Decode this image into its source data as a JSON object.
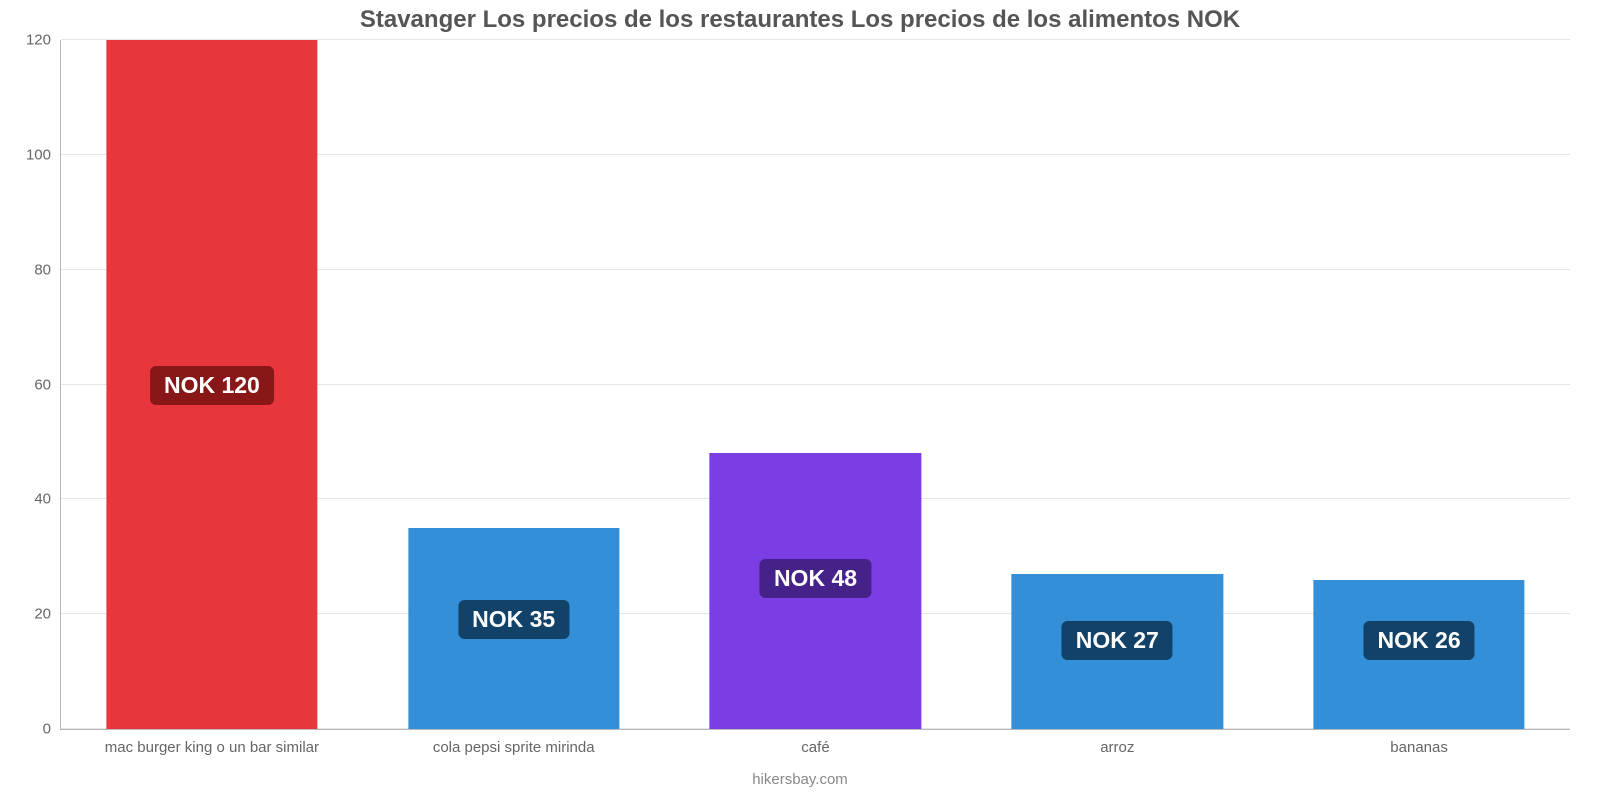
{
  "chart": {
    "type": "bar",
    "title": "Stavanger Los precios de los restaurantes Los precios de los alimentos NOK",
    "title_fontsize": 24,
    "title_color": "#555555",
    "background_color": "#ffffff",
    "axis_color": "#b8b8b8",
    "grid_color": "#e5e5e5",
    "tick_label_color": "#666666",
    "tick_fontsize": 15,
    "bar_width_pct": 70,
    "ylim": [
      0,
      120
    ],
    "ytick_step": 20,
    "yticks": [
      {
        "value": 0,
        "label": "0"
      },
      {
        "value": 20,
        "label": "20"
      },
      {
        "value": 40,
        "label": "40"
      },
      {
        "value": 60,
        "label": "60"
      },
      {
        "value": 80,
        "label": "80"
      },
      {
        "value": 100,
        "label": "100"
      },
      {
        "value": 120,
        "label": "120"
      }
    ],
    "value_badge": {
      "fontsize": 23,
      "text_color": "#ffffff",
      "border_radius": 6,
      "y_from_bottom_pct": 24
    },
    "bars": [
      {
        "category": "mac burger king o un bar similar",
        "value": 120,
        "label": "NOK 120",
        "bar_color": "#e8373c",
        "badge_bg": "#8a1717",
        "badge_y_pct": 47
      },
      {
        "category": "cola pepsi sprite mirinda",
        "value": 35,
        "label": "NOK 35",
        "bar_color": "#328fd8",
        "badge_bg": "#124268",
        "badge_y_pct": 13
      },
      {
        "category": "café",
        "value": 48,
        "label": "NOK 48",
        "bar_color": "#7b3ee4",
        "badge_bg": "#45218a",
        "badge_y_pct": 19
      },
      {
        "category": "arroz",
        "value": 27,
        "label": "NOK 27",
        "bar_color": "#328fd8",
        "badge_bg": "#124268",
        "badge_y_pct": 10
      },
      {
        "category": "bananas",
        "value": 26,
        "label": "NOK 26",
        "bar_color": "#328fd8",
        "badge_bg": "#124268",
        "badge_y_pct": 10
      }
    ],
    "attribution": "hikersbay.com",
    "attribution_color": "#888888",
    "attribution_fontsize": 15
  }
}
